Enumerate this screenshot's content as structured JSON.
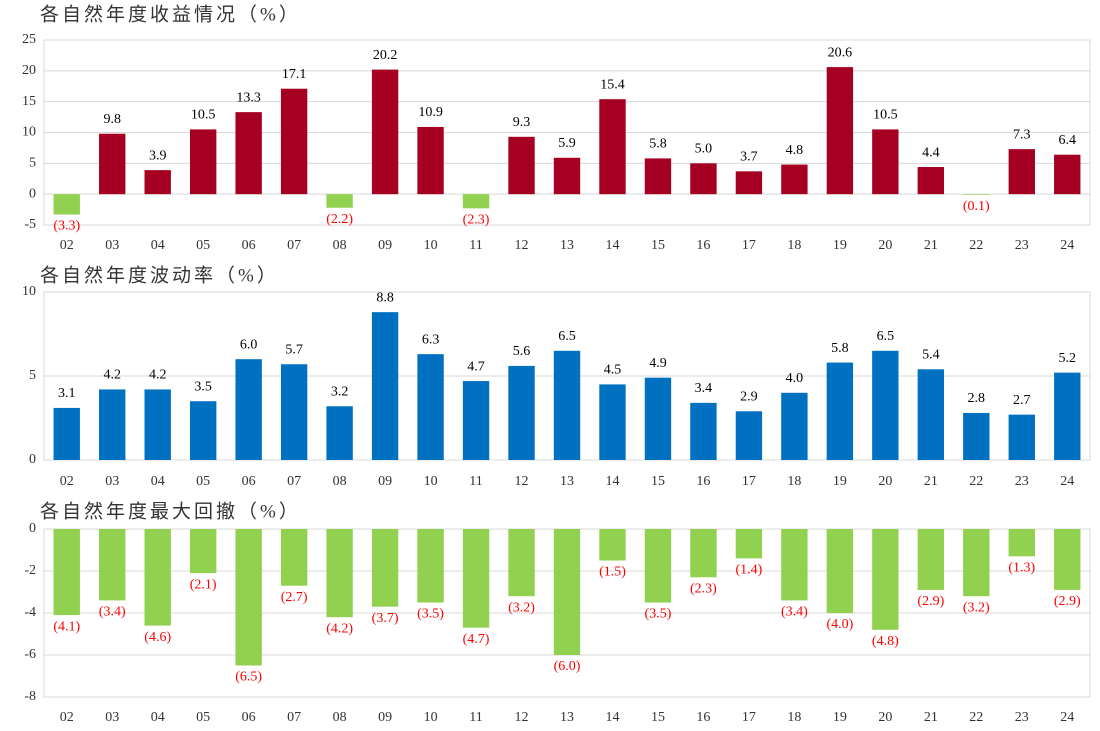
{
  "chart_data": [
    {
      "type": "bar",
      "title": "各自然年度收益情况（%）",
      "categories": [
        "02",
        "03",
        "04",
        "05",
        "06",
        "07",
        "08",
        "09",
        "10",
        "11",
        "12",
        "13",
        "14",
        "15",
        "16",
        "17",
        "18",
        "19",
        "20",
        "21",
        "22",
        "23",
        "24"
      ],
      "values": [
        -3.3,
        9.8,
        3.9,
        10.5,
        13.3,
        17.1,
        -2.2,
        20.2,
        10.9,
        -2.3,
        9.3,
        5.9,
        15.4,
        5.8,
        5.0,
        3.7,
        4.8,
        20.6,
        10.5,
        4.4,
        -0.1,
        7.3,
        6.4
      ],
      "value_labels": [
        "(3.3)",
        "9.8",
        "3.9",
        "10.5",
        "13.3",
        "17.1",
        "(2.2)",
        "20.2",
        "10.9",
        "(2.3)",
        "9.3",
        "5.9",
        "15.4",
        "5.8",
        "5.0",
        "3.7",
        "4.8",
        "20.6",
        "10.5",
        "4.4",
        "(0.1)",
        "7.3",
        "6.4"
      ],
      "color": "#a50021",
      "negative_color": "#92d050",
      "label_color": "#000000",
      "negative_label_color": "#ff0000",
      "ylim": [
        -5,
        25
      ],
      "yticks": [
        -5,
        0,
        5,
        10,
        15,
        20,
        25
      ],
      "grid": true
    },
    {
      "type": "bar",
      "title": "各自然年度波动率（%）",
      "categories": [
        "02",
        "03",
        "04",
        "05",
        "06",
        "07",
        "08",
        "09",
        "10",
        "11",
        "12",
        "13",
        "14",
        "15",
        "16",
        "17",
        "18",
        "19",
        "20",
        "21",
        "22",
        "23",
        "24"
      ],
      "values": [
        3.1,
        4.2,
        4.2,
        3.5,
        6.0,
        5.7,
        3.2,
        8.8,
        6.3,
        4.7,
        5.6,
        6.5,
        4.5,
        4.9,
        3.4,
        2.9,
        4.0,
        5.8,
        6.5,
        5.4,
        2.8,
        2.7,
        5.2
      ],
      "value_labels": [
        "3.1",
        "4.2",
        "4.2",
        "3.5",
        "6.0",
        "5.7",
        "3.2",
        "8.8",
        "6.3",
        "4.7",
        "5.6",
        "6.5",
        "4.5",
        "4.9",
        "3.4",
        "2.9",
        "4.0",
        "5.8",
        "6.5",
        "5.4",
        "2.8",
        "2.7",
        "5.2"
      ],
      "color": "#0070c0",
      "label_color": "#000000",
      "ylim": [
        0,
        10
      ],
      "yticks": [
        0,
        5,
        10
      ],
      "grid": true
    },
    {
      "type": "bar",
      "title": "各自然年度最大回撤（%）",
      "categories": [
        "02",
        "03",
        "04",
        "05",
        "06",
        "07",
        "08",
        "09",
        "10",
        "11",
        "12",
        "13",
        "14",
        "15",
        "16",
        "17",
        "18",
        "19",
        "20",
        "21",
        "22",
        "23",
        "24"
      ],
      "values": [
        -4.1,
        -3.4,
        -4.6,
        -2.1,
        -6.5,
        -2.7,
        -4.2,
        -3.7,
        -3.5,
        -4.7,
        -3.2,
        -6.0,
        -1.5,
        -3.5,
        -2.3,
        -1.4,
        -3.4,
        -4.0,
        -4.8,
        -2.9,
        -3.2,
        -1.3,
        -2.9
      ],
      "value_labels": [
        "(4.1)",
        "(3.4)",
        "(4.6)",
        "(2.1)",
        "(6.5)",
        "(2.7)",
        "(4.2)",
        "(3.7)",
        "(3.5)",
        "(4.7)",
        "(3.2)",
        "(6.0)",
        "(1.5)",
        "(3.5)",
        "(2.3)",
        "(1.4)",
        "(3.4)",
        "(4.0)",
        "(4.8)",
        "(2.9)",
        "(3.2)",
        "(1.3)",
        "(2.9)"
      ],
      "color": "#92d050",
      "label_color": "#ff0000",
      "ylim": [
        -8,
        0
      ],
      "yticks": [
        -8,
        -6,
        -4,
        -2,
        0
      ],
      "grid": true
    }
  ]
}
